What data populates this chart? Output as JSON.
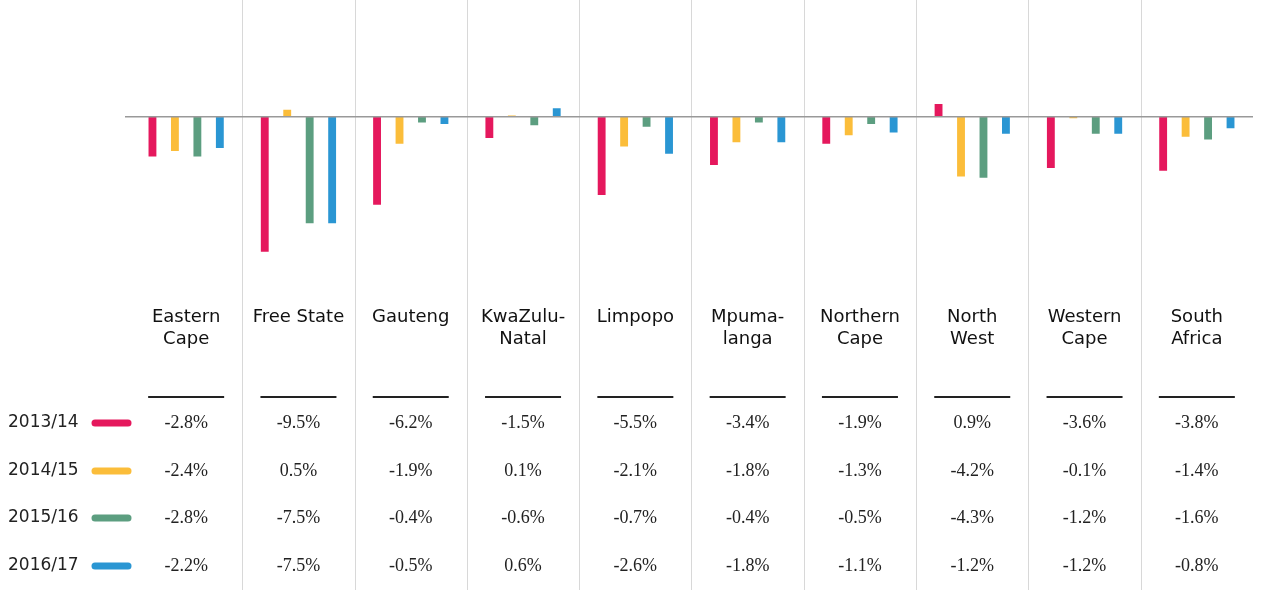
{
  "chart_data": {
    "type": "bar",
    "categories": [
      "Eastern Cape",
      "Free State",
      "Gauteng",
      "KwaZulu-Natal",
      "Limpopo",
      "Mpuma-langa",
      "Northern Cape",
      "North West",
      "Western Cape",
      "South Africa"
    ],
    "series": [
      {
        "name": "2013/14",
        "color": "#e5185d",
        "values": [
          -2.8,
          -9.5,
          -6.2,
          -1.5,
          -5.5,
          -3.4,
          -1.9,
          0.9,
          -3.6,
          -3.8
        ],
        "value_labels": [
          "-2.8%",
          "-9.5%",
          "-6.2%",
          "-1.5%",
          "-5.5%",
          "-3.4%",
          "-1.9%",
          "0.9%",
          "-3.6%",
          "-3.8%"
        ]
      },
      {
        "name": "2014/15",
        "color": "#fbbd3a",
        "values": [
          -2.4,
          0.5,
          -1.9,
          0.1,
          -2.1,
          -1.8,
          -1.3,
          -4.2,
          -0.1,
          -1.4
        ],
        "value_labels": [
          "-2.4%",
          "0.5%",
          "-1.9%",
          "0.1%",
          "-2.1%",
          "-1.8%",
          "-1.3%",
          "-4.2%",
          "-0.1%",
          "-1.4%"
        ]
      },
      {
        "name": "2015/16",
        "color": "#5c9e80",
        "values": [
          -2.8,
          -7.5,
          -0.4,
          -0.6,
          -0.7,
          -0.4,
          -0.5,
          -4.3,
          -1.2,
          -1.6
        ],
        "value_labels": [
          "-2.8%",
          "-7.5%",
          "-0.4%",
          "-0.6%",
          "-0.7%",
          "-0.4%",
          "-0.5%",
          "-4.3%",
          "-1.2%",
          "-1.6%"
        ]
      },
      {
        "name": "2016/17",
        "color": "#2a96d3",
        "values": [
          -2.2,
          -7.5,
          -0.5,
          0.6,
          -2.6,
          -1.8,
          -1.1,
          -1.2,
          -1.2,
          -0.8
        ],
        "value_labels": [
          "-2.2%",
          "-7.5%",
          "-0.5%",
          "0.6%",
          "-2.6%",
          "-1.8%",
          "-1.1%",
          "-1.2%",
          "-1.2%",
          "-0.8%"
        ]
      }
    ],
    "grid": "x",
    "legend": "left"
  }
}
